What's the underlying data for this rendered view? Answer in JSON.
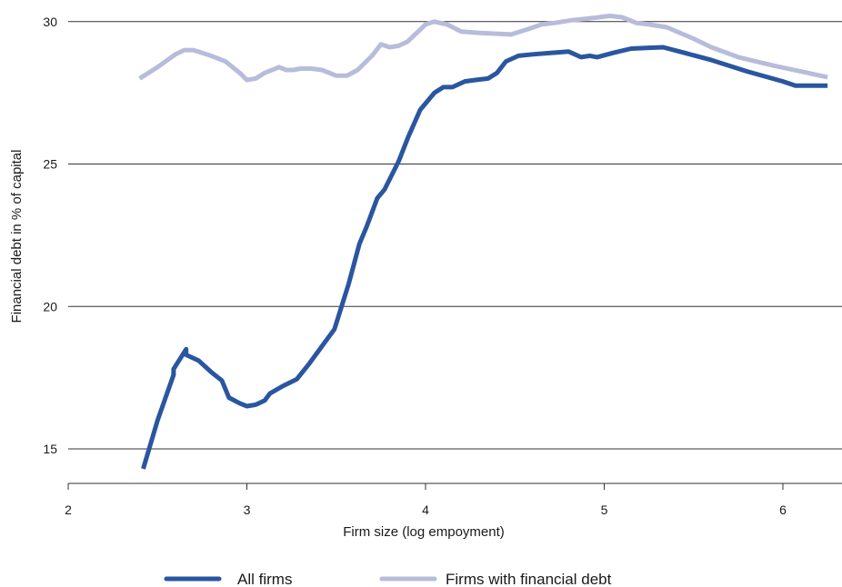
{
  "chart_data": {
    "type": "line",
    "title": "",
    "xlabel": "Firm size (log empoyment)",
    "ylabel": "Financial debt in % of capital",
    "xlim": [
      2,
      6.35
    ],
    "ylim": [
      13.8,
      30.5
    ],
    "xticks": [
      2,
      3,
      4,
      5,
      6
    ],
    "yticks": [
      15,
      20,
      25,
      30
    ],
    "grid": "horizontal",
    "legend_position": "bottom",
    "series": [
      {
        "name": "All firms",
        "color": "#2a56a0",
        "points": [
          [
            2.42,
            14.3
          ],
          [
            2.5,
            16.0
          ],
          [
            2.59,
            17.6
          ],
          [
            2.59,
            17.8
          ],
          [
            2.66,
            18.5
          ],
          [
            2.66,
            18.3
          ],
          [
            2.73,
            18.1
          ],
          [
            2.8,
            17.7
          ],
          [
            2.86,
            17.4
          ],
          [
            2.9,
            16.8
          ],
          [
            2.96,
            16.6
          ],
          [
            3.0,
            16.5
          ],
          [
            3.05,
            16.55
          ],
          [
            3.1,
            16.7
          ],
          [
            3.13,
            16.95
          ],
          [
            3.2,
            17.2
          ],
          [
            3.28,
            17.45
          ],
          [
            3.35,
            18.0
          ],
          [
            3.42,
            18.6
          ],
          [
            3.49,
            19.2
          ],
          [
            3.57,
            20.8
          ],
          [
            3.63,
            22.2
          ],
          [
            3.67,
            22.8
          ],
          [
            3.73,
            23.8
          ],
          [
            3.77,
            24.1
          ],
          [
            3.85,
            25.1
          ],
          [
            3.9,
            25.9
          ],
          [
            3.97,
            26.9
          ],
          [
            4.05,
            27.5
          ],
          [
            4.1,
            27.7
          ],
          [
            4.15,
            27.7
          ],
          [
            4.22,
            27.9
          ],
          [
            4.28,
            27.95
          ],
          [
            4.35,
            28.0
          ],
          [
            4.4,
            28.2
          ],
          [
            4.45,
            28.6
          ],
          [
            4.52,
            28.8
          ],
          [
            4.6,
            28.85
          ],
          [
            4.7,
            28.9
          ],
          [
            4.8,
            28.95
          ],
          [
            4.87,
            28.75
          ],
          [
            4.92,
            28.8
          ],
          [
            4.96,
            28.75
          ],
          [
            5.05,
            28.9
          ],
          [
            5.15,
            29.05
          ],
          [
            5.25,
            29.08
          ],
          [
            5.33,
            29.1
          ],
          [
            5.45,
            28.9
          ],
          [
            5.6,
            28.65
          ],
          [
            5.8,
            28.25
          ],
          [
            6.0,
            27.9
          ],
          [
            6.07,
            27.75
          ],
          [
            6.25,
            27.75
          ]
        ]
      },
      {
        "name": "Firms with financial debt",
        "color": "#b8bcdb",
        "points": [
          [
            2.4,
            28.0
          ],
          [
            2.5,
            28.4
          ],
          [
            2.6,
            28.85
          ],
          [
            2.65,
            29.0
          ],
          [
            2.7,
            29.0
          ],
          [
            2.8,
            28.8
          ],
          [
            2.88,
            28.6
          ],
          [
            2.96,
            28.2
          ],
          [
            3.0,
            27.95
          ],
          [
            3.05,
            28.0
          ],
          [
            3.1,
            28.2
          ],
          [
            3.18,
            28.4
          ],
          [
            3.22,
            28.3
          ],
          [
            3.26,
            28.3
          ],
          [
            3.3,
            28.35
          ],
          [
            3.36,
            28.35
          ],
          [
            3.42,
            28.3
          ],
          [
            3.5,
            28.1
          ],
          [
            3.56,
            28.1
          ],
          [
            3.62,
            28.3
          ],
          [
            3.7,
            28.8
          ],
          [
            3.75,
            29.2
          ],
          [
            3.8,
            29.1
          ],
          [
            3.85,
            29.15
          ],
          [
            3.9,
            29.3
          ],
          [
            3.95,
            29.6
          ],
          [
            4.0,
            29.9
          ],
          [
            4.05,
            30.0
          ],
          [
            4.12,
            29.9
          ],
          [
            4.2,
            29.65
          ],
          [
            4.3,
            29.6
          ],
          [
            4.48,
            29.55
          ],
          [
            4.58,
            29.75
          ],
          [
            4.65,
            29.9
          ],
          [
            4.72,
            29.95
          ],
          [
            4.82,
            30.05
          ],
          [
            4.9,
            30.1
          ],
          [
            4.97,
            30.15
          ],
          [
            5.03,
            30.2
          ],
          [
            5.1,
            30.15
          ],
          [
            5.18,
            29.95
          ],
          [
            5.25,
            29.9
          ],
          [
            5.35,
            29.8
          ],
          [
            5.5,
            29.4
          ],
          [
            5.6,
            29.1
          ],
          [
            5.75,
            28.75
          ],
          [
            5.95,
            28.45
          ],
          [
            6.1,
            28.25
          ],
          [
            6.25,
            28.05
          ]
        ]
      }
    ]
  },
  "legend": {
    "items": [
      {
        "label": "All firms",
        "color": "#2a56a0"
      },
      {
        "label": "Firms with financial debt",
        "color": "#b8bcdb"
      }
    ]
  }
}
